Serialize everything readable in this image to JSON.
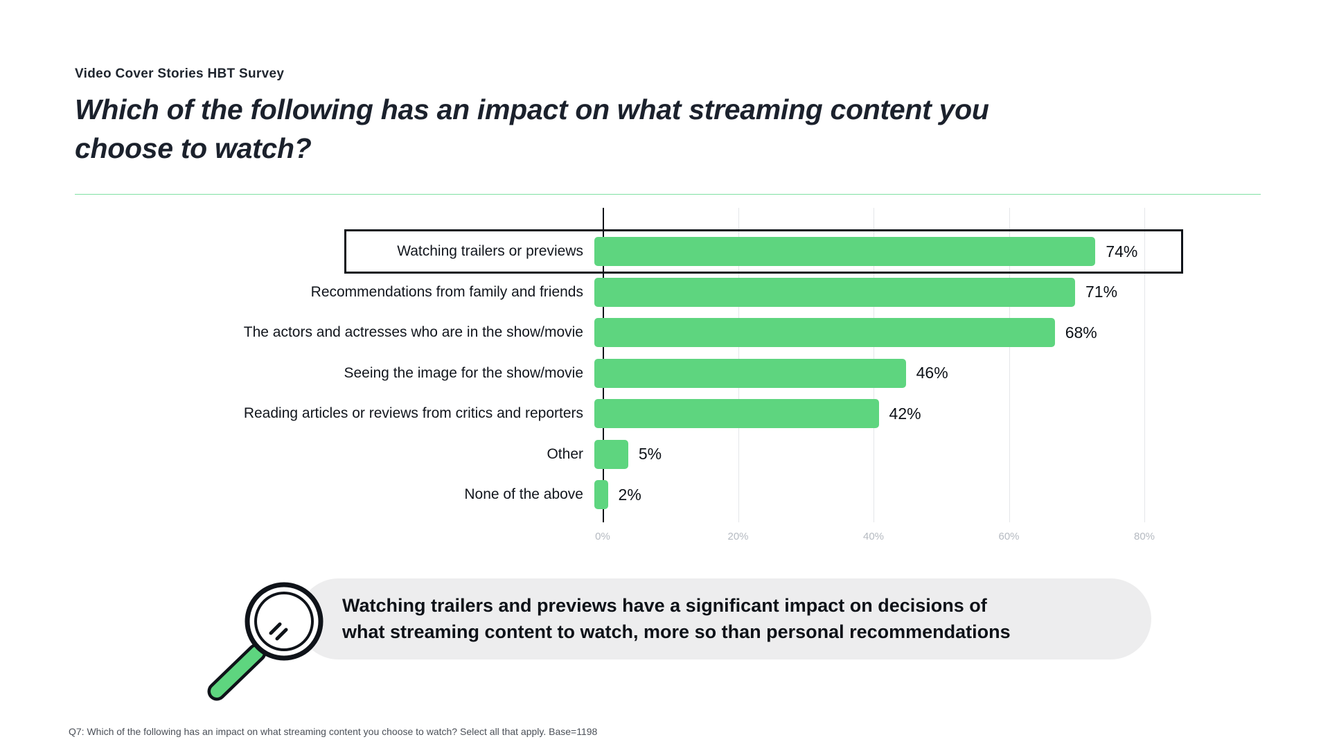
{
  "slide": {
    "eyebrow": "Video Cover Stories HBT Survey",
    "title_lines": [
      "Which of the following has an impact on what streaming content you",
      "choose to watch?"
    ],
    "footnote": "Q7: Which of the following has an impact on what streaming content you choose to watch? Select all that apply. Base=1198"
  },
  "chart_data": {
    "type": "bar",
    "orientation": "horizontal",
    "title": "Which of the following has an impact on what streaming content you choose to watch?",
    "categories": [
      "Watching trailers or previews",
      "Recommendations from family and friends",
      "The actors and actresses who are in the show/movie",
      "Seeing the image for the show/movie",
      "Reading articles or reviews from critics and reporters",
      "Other",
      "None of the above"
    ],
    "values": [
      74,
      71,
      68,
      46,
      42,
      5,
      2
    ],
    "value_labels": [
      "74%",
      "71%",
      "68%",
      "46%",
      "42%",
      "5%",
      "2%"
    ],
    "highlighted_index": 0,
    "x_ticks": [
      {
        "label": "0%",
        "value": 0
      },
      {
        "label": "20%",
        "value": 20
      },
      {
        "label": "40%",
        "value": 40
      },
      {
        "label": "60%",
        "value": 60
      },
      {
        "label": "80%",
        "value": 80
      }
    ],
    "xlim": [
      0,
      100
    ],
    "gridlines": true,
    "legend": "none",
    "bar_color": "#5ed57f"
  },
  "callout": {
    "icon": "magnifier-icon",
    "background": "#ededee",
    "lines": [
      "Watching trailers and previews have a significant impact on decisions of",
      "what streaming content to watch, more so than personal recommendations"
    ]
  },
  "colors": {
    "accent_green": "#5ed57f",
    "divider_green": "#7fe0a3",
    "title_text": "#1b212c",
    "tick_gray": "#b5bac1",
    "pill_gray": "#ededee"
  }
}
